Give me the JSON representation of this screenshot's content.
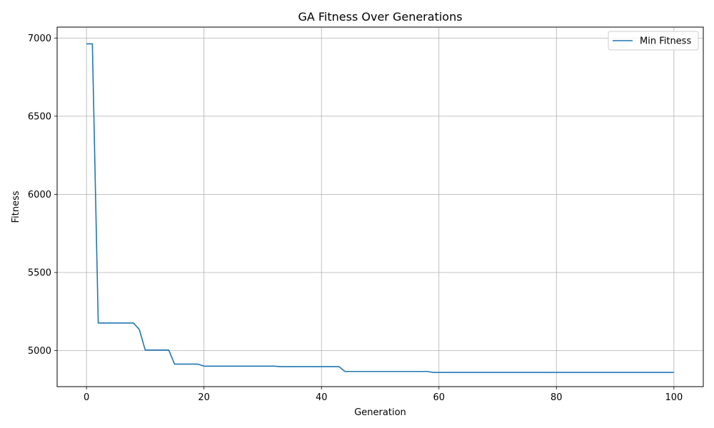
{
  "chart_data": {
    "type": "line",
    "title": "GA Fitness Over Generations",
    "xlabel": "Generation",
    "ylabel": "Fitness",
    "xlim": [
      -5,
      105
    ],
    "ylim": [
      4770,
      7070
    ],
    "xticks": [
      0,
      20,
      40,
      60,
      80,
      100
    ],
    "yticks": [
      5000,
      5500,
      6000,
      6500,
      7000
    ],
    "grid": true,
    "legend_position": "top-right",
    "colors": {
      "series": "#1f77b4",
      "grid": "#b0b0b0",
      "axis": "#000000"
    },
    "series": [
      {
        "name": "Min Fitness",
        "x": [
          0,
          1,
          2,
          8,
          9,
          10,
          14,
          15,
          19,
          20,
          32,
          33,
          43,
          44,
          58,
          59,
          100
        ],
        "y": [
          6963,
          6963,
          5177,
          5177,
          5135,
          5004,
          5004,
          4914,
          4914,
          4901,
          4901,
          4898,
          4898,
          4867,
          4867,
          4861,
          4861
        ]
      }
    ]
  }
}
